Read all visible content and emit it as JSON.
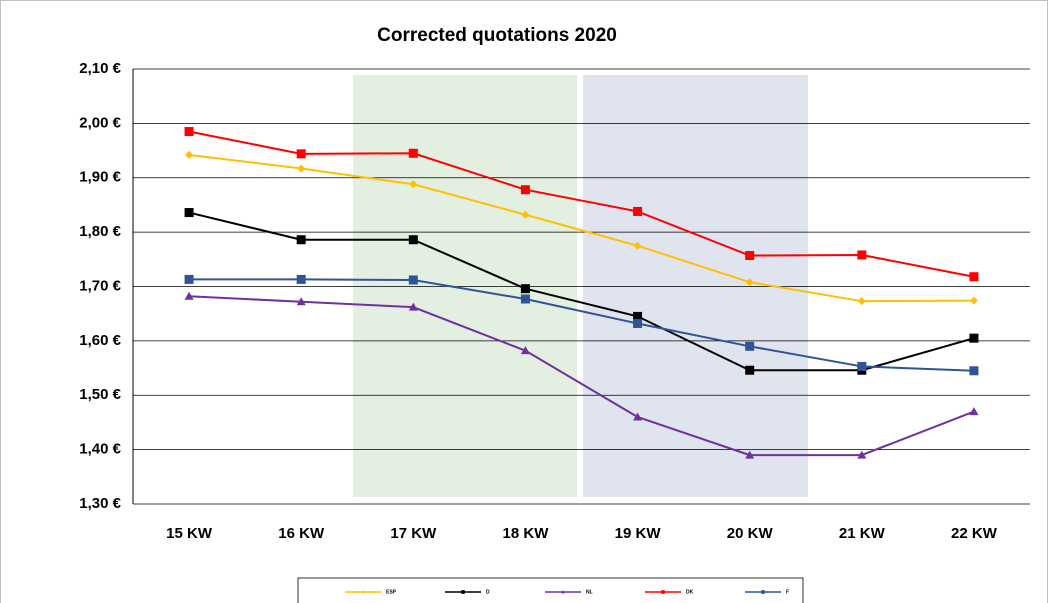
{
  "chart_data": {
    "type": "line",
    "title": "Corrected quotations 2020",
    "categories": [
      "15 KW",
      "16 KW",
      "17 KW",
      "18 KW",
      "19 KW",
      "20 KW",
      "21 KW",
      "22 KW"
    ],
    "series": [
      {
        "name": "ESP",
        "color": "#ffc000",
        "marker": "diamond",
        "values": [
          1.942,
          1.917,
          1.888,
          1.832,
          1.775,
          1.708,
          1.673,
          1.674
        ]
      },
      {
        "name": "D",
        "color": "#000000",
        "marker": "square",
        "values": [
          1.836,
          1.786,
          1.786,
          1.696,
          1.645,
          1.546,
          1.546,
          1.605
        ]
      },
      {
        "name": "NL",
        "color": "#7030a0",
        "marker": "triangle",
        "values": [
          1.682,
          1.672,
          1.662,
          1.582,
          1.46,
          1.39,
          1.39,
          1.47
        ]
      },
      {
        "name": "DK",
        "color": "#ff0000",
        "marker": "square",
        "values": [
          1.985,
          1.944,
          1.945,
          1.878,
          1.838,
          1.757,
          1.758,
          1.718
        ]
      },
      {
        "name": "F",
        "color": "#2f5597",
        "marker": "square",
        "values": [
          1.713,
          1.713,
          1.712,
          1.677,
          1.632,
          1.59,
          1.553,
          1.545
        ]
      }
    ],
    "ylim": [
      1.3,
      2.1
    ],
    "yticks": [
      {
        "value": 1.3,
        "label": "1,30 €"
      },
      {
        "value": 1.4,
        "label": "1,40 €"
      },
      {
        "value": 1.5,
        "label": "1,50 €"
      },
      {
        "value": 1.6,
        "label": "1,60 €"
      },
      {
        "value": 1.7,
        "label": "1,70 €"
      },
      {
        "value": 1.8,
        "label": "1,80 €"
      },
      {
        "value": 1.9,
        "label": "1,90 €"
      },
      {
        "value": 2.0,
        "label": "2,00 €"
      },
      {
        "value": 2.1,
        "label": "2,10 €"
      }
    ],
    "grid": true,
    "legend": "bottom"
  }
}
